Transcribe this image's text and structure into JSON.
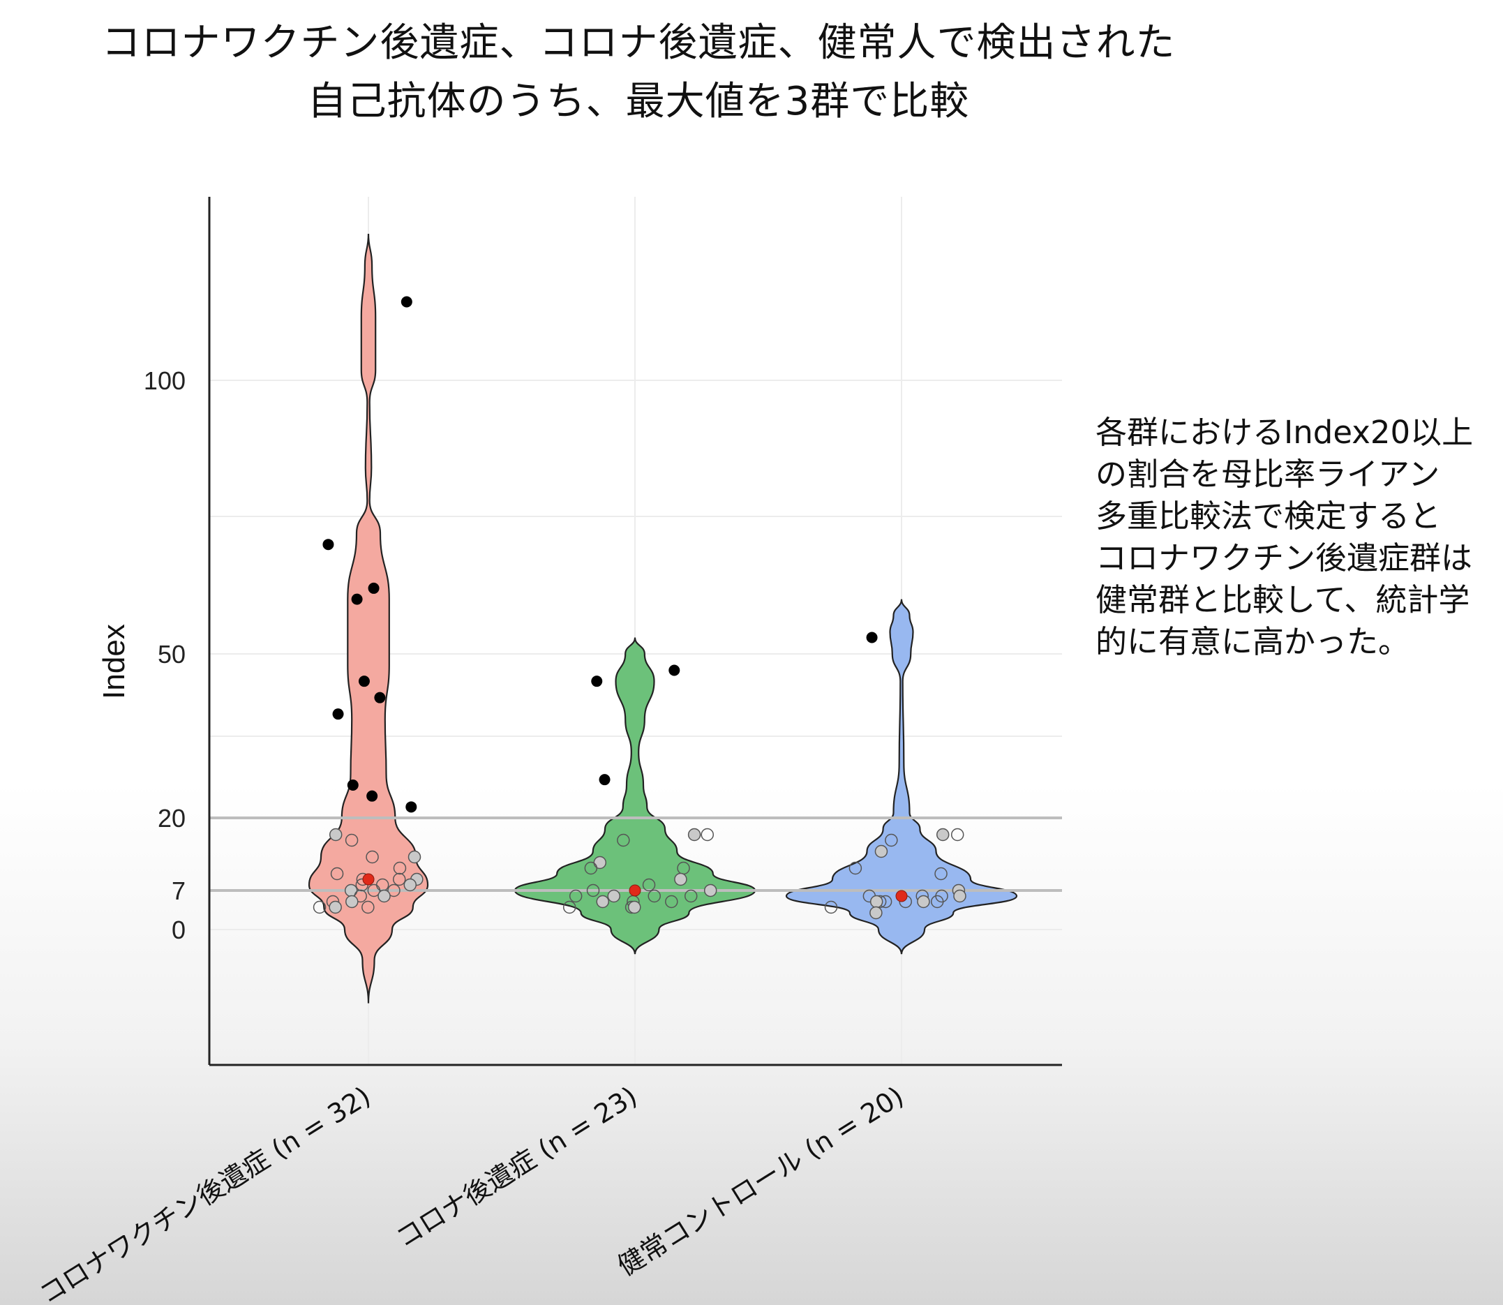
{
  "title_lines": [
    "コロナワクチン後遺症、コロナ後遺症、健常人で検出された",
    "自己抗体のうち、最大値を3群で比較"
  ],
  "note_lines": [
    "各群におけるIndex20以上",
    "の割合を母比率ライアン",
    "多重比較法で検定すると",
    "コロナワクチン後遺症群は",
    "健常群と比較して、統計学",
    "的に有意に高かった。"
  ],
  "chart_data": {
    "type": "violin",
    "ylabel": "Index",
    "y_ticks": [
      0,
      7,
      20,
      50,
      100
    ],
    "y_scale": "nonlinear (as printed: 0, 7, 20, 50, 100)",
    "reference_lines": [
      7,
      20
    ],
    "grid": true,
    "categories": [
      "コロナワクチン後遺症 (n = 32)",
      "コロナ後遺症 (n = 23)",
      "健常コントロール (n = 20)"
    ],
    "colors": [
      "#f4a9a0",
      "#6cc17a",
      "#98b8f0"
    ],
    "series": [
      {
        "median": 9,
        "high_points": [
          115,
          70,
          62,
          60,
          45,
          42,
          39,
          26,
          24,
          22
        ],
        "low_points": [
          17,
          16,
          13,
          13,
          11,
          10,
          9,
          9,
          9,
          8,
          8,
          8,
          7,
          7,
          7,
          6,
          6,
          5,
          5,
          4,
          4,
          4
        ]
      },
      {
        "median": 7,
        "high_points": [
          47,
          45,
          27
        ],
        "low_points": [
          17,
          17,
          16,
          12,
          11,
          11,
          9,
          8,
          7,
          7,
          6,
          6,
          6,
          6,
          5,
          5,
          5,
          4,
          4,
          4
        ]
      },
      {
        "median": 6,
        "high_points": [
          53
        ],
        "low_points": [
          17,
          17,
          16,
          14,
          11,
          10,
          7,
          6,
          6,
          6,
          6,
          5,
          5,
          5,
          5,
          5,
          5,
          4,
          3
        ]
      }
    ]
  }
}
